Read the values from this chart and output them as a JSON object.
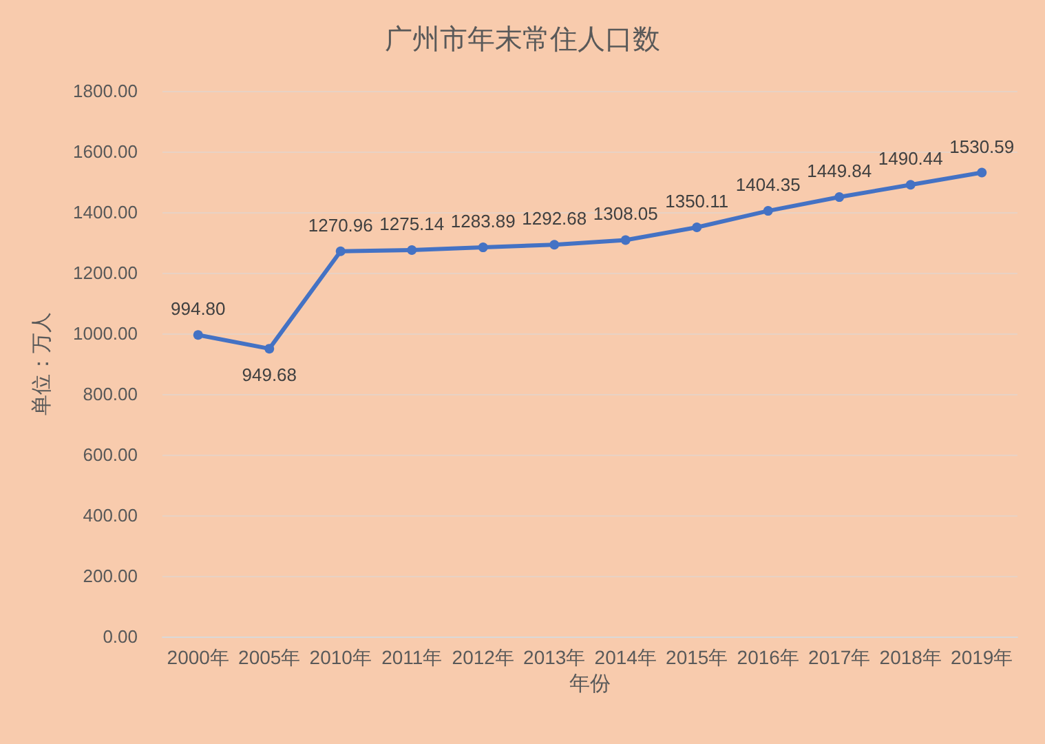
{
  "chart_data": {
    "type": "line",
    "title": "广州市年末常住人口数",
    "xlabel": "年份",
    "ylabel": "单位：万人",
    "categories": [
      "2000年",
      "2005年",
      "2010年",
      "2011年",
      "2012年",
      "2013年",
      "2014年",
      "2015年",
      "2016年",
      "2017年",
      "2018年",
      "2019年"
    ],
    "series": [
      {
        "color": "#4472c4",
        "values": [
          994.8,
          949.68,
          1270.96,
          1275.14,
          1283.89,
          1292.68,
          1308.05,
          1350.11,
          1404.35,
          1449.84,
          1490.44,
          1530.59
        ],
        "value_labels": [
          "994.80",
          "949.68",
          "1270.96",
          "1275.14",
          "1283.89",
          "1292.68",
          "1308.05",
          "1350.11",
          "1404.35",
          "1449.84",
          "1490.44",
          "1530.59"
        ]
      }
    ],
    "ylim": [
      0,
      1800
    ],
    "yticks": [
      {
        "value": 0,
        "label": "0.00"
      },
      {
        "value": 200,
        "label": "200.00"
      },
      {
        "value": 400,
        "label": "400.00"
      },
      {
        "value": 600,
        "label": "600.00"
      },
      {
        "value": 800,
        "label": "800.00"
      },
      {
        "value": 1000,
        "label": "1000.00"
      },
      {
        "value": 1200,
        "label": "1200.00"
      },
      {
        "value": 1400,
        "label": "1400.00"
      },
      {
        "value": 1600,
        "label": "1600.00"
      },
      {
        "value": 1800,
        "label": "1800.00"
      }
    ],
    "grid": "y",
    "marker": "circle",
    "line_style": "solid"
  }
}
